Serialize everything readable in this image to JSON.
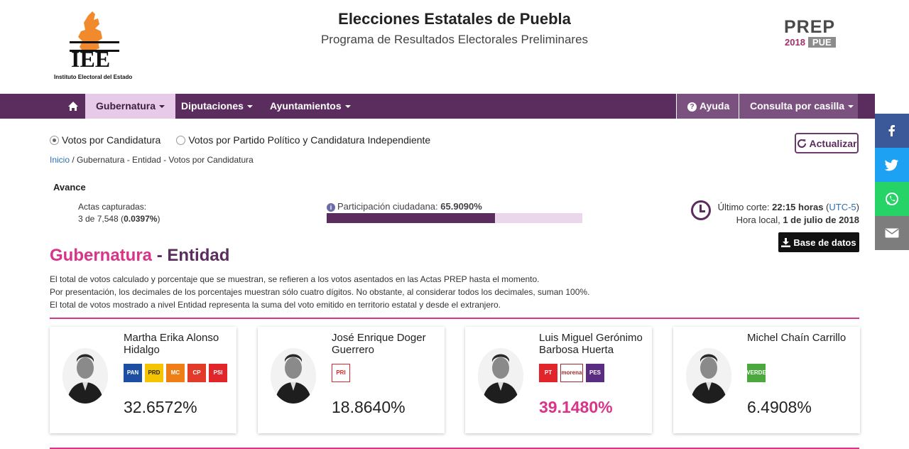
{
  "header": {
    "logo_text": "IEE",
    "logo_caption": "Instituto Electoral del Estado",
    "title": "Elecciones Estatales de Puebla",
    "subtitle": "Programa de Resultados Electorales Preliminares",
    "prep_logo": {
      "word": "PREP",
      "year": "2018",
      "state": "PUE"
    }
  },
  "nav": {
    "home_icon": "home-icon",
    "items": [
      "Gubernatura",
      "Diputaciones",
      "Ayuntamientos"
    ],
    "help": "Ayuda",
    "consulta": "Consulta por casilla"
  },
  "share": [
    "facebook-icon",
    "twitter-icon",
    "whatsapp-icon",
    "email-icon"
  ],
  "view": {
    "radio_1": "Votos por Candidatura",
    "radio_2": "Votos por Partido Político y Candidatura Independiente",
    "selected": "Votos por Candidatura"
  },
  "breadcrumb": {
    "link": "Inicio",
    "rest": " / Gubernatura - Entidad -  Votos por Candidatura"
  },
  "refresh": "Actualizar",
  "avance": {
    "label": "Avance",
    "actas_label": "Actas capturadas:",
    "actas_count": "3 de 7,548 (",
    "actas_pct": "0.0397%",
    "actas_close": ")",
    "partic_label": "Participación ciudadana: ",
    "partic_value": "65.9090%",
    "partic_fraction": 0.65909
  },
  "corte": {
    "label": "Último corte: ",
    "time": "22:15 horas",
    "tz": "UTC-5",
    "local_label": "Hora local, ",
    "date": "1 de julio de 2018"
  },
  "database": "Base de datos",
  "section": {
    "title_a": "Gubernatura",
    "dash": " - ",
    "title_b": "Entidad"
  },
  "notes": [
    "El total de votos calculado y porcentaje que se muestran, se refieren a los votos asentados en las Actas PREP hasta el momento.",
    "Por presentación, los decimales de los porcentajes muestran sólo cuatro dígitos. No obstante, al considerar todos los decimales, suman 100%.",
    "El total de votos mostrado a nivel Entidad representa la suma del voto emitido en territorio estatal y desde el extranjero."
  ],
  "candidates": [
    {
      "name": "Martha Erika Alonso Hidalgo",
      "pct": "32.6572%",
      "parties": [
        {
          "label": "PAN",
          "color": "#1c4fa1"
        },
        {
          "label": "PRD",
          "color": "#f5c400"
        },
        {
          "label": "MC",
          "color": "#f07e16"
        },
        {
          "label": "CP",
          "color": "#e23b2a"
        },
        {
          "label": "PSI",
          "color": "#e2242b"
        }
      ]
    },
    {
      "name": "José Enrique Doger Guerrero",
      "pct": "18.8640%",
      "parties": [
        {
          "label": "PRI",
          "color": "#e2242b"
        }
      ]
    },
    {
      "name": "Luis Miguel Gerónimo Barbosa Huerta",
      "pct": "39.1480%",
      "parties": [
        {
          "label": "PT",
          "color": "#e2242b"
        },
        {
          "label": "morena",
          "color": "#a32a2a"
        },
        {
          "label": "PES",
          "color": "#5b2d82"
        }
      ]
    },
    {
      "name": "Michel Chaín Carrillo",
      "pct": "6.4908%",
      "parties": [
        {
          "label": "VERDE",
          "color": "#4aa83c"
        }
      ]
    }
  ]
}
